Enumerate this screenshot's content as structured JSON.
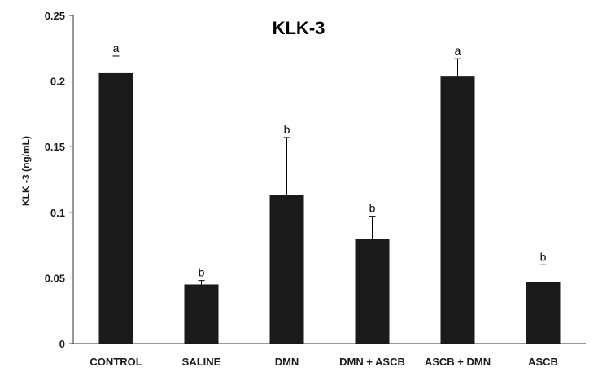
{
  "chart_data": {
    "type": "bar",
    "title": "KLK-3",
    "xlabel": "",
    "ylabel": "KLK -3 (ng/mL)",
    "ylim": [
      0,
      0.25
    ],
    "yticks": [
      "0",
      "0.05",
      "0.1",
      "0.15",
      "0.2",
      "0.25"
    ],
    "ytick_values": [
      0,
      0.05,
      0.1,
      0.15,
      0.2,
      0.25
    ],
    "categories": [
      "CONTROL",
      "SALINE",
      "DMN",
      "DMN + ASCB",
      "ASCB + DMN",
      "ASCB"
    ],
    "values": [
      0.206,
      0.045,
      0.113,
      0.08,
      0.204,
      0.047
    ],
    "errors": [
      0.013,
      0.003,
      0.044,
      0.017,
      0.013,
      0.013
    ],
    "annotations": [
      "a",
      "b",
      "b",
      "b",
      "a",
      "b"
    ],
    "bar_color": "#1a1a1a",
    "grid": false,
    "legend": "none"
  }
}
